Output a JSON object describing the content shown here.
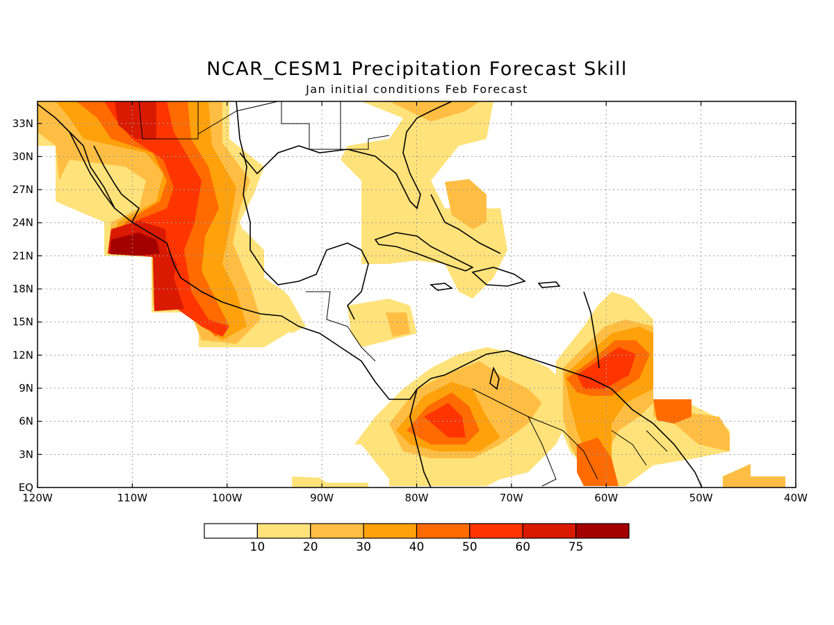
{
  "title": "NCAR_CESM1 Precipitation Forecast Skill",
  "subtitle": "Jan initial conditions  Feb Forecast",
  "map": {
    "lon_range": [
      -120,
      -40
    ],
    "lat_range": [
      0,
      35
    ],
    "x_ticks": [
      {
        "lon": -120,
        "label": "120W"
      },
      {
        "lon": -110,
        "label": "110W"
      },
      {
        "lon": -100,
        "label": "100W"
      },
      {
        "lon": -90,
        "label": "90W"
      },
      {
        "lon": -80,
        "label": "80W"
      },
      {
        "lon": -70,
        "label": "70W"
      },
      {
        "lon": -60,
        "label": "60W"
      },
      {
        "lon": -50,
        "label": "50W"
      },
      {
        "lon": -40,
        "label": "40W"
      }
    ],
    "y_ticks": [
      {
        "lat": 0,
        "label": "EQ"
      },
      {
        "lat": 3,
        "label": "3N"
      },
      {
        "lat": 6,
        "label": "6N"
      },
      {
        "lat": 9,
        "label": "9N"
      },
      {
        "lat": 12,
        "label": "12N"
      },
      {
        "lat": 15,
        "label": "15N"
      },
      {
        "lat": 18,
        "label": "18N"
      },
      {
        "lat": 21,
        "label": "21N"
      },
      {
        "lat": 24,
        "label": "24N"
      },
      {
        "lat": 27,
        "label": "27N"
      },
      {
        "lat": 30,
        "label": "30N"
      },
      {
        "lat": 33,
        "label": "33N"
      }
    ],
    "grid": true
  },
  "colorbar": {
    "levels": [
      "10",
      "20",
      "30",
      "40",
      "50",
      "60",
      "75"
    ],
    "colors": [
      "#ffffff",
      "#ffe27a",
      "#ffbe43",
      "#ffa10a",
      "#ff6b00",
      "#ff3500",
      "#d91a00",
      "#a50000"
    ]
  }
}
